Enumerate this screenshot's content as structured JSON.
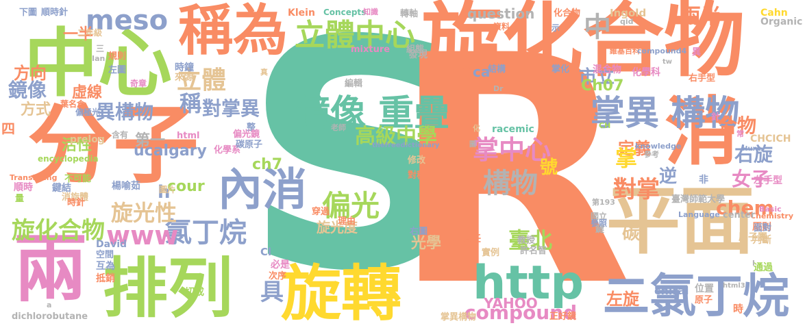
{
  "palette": {
    "orange": "#F98C64",
    "green": "#A6D75B",
    "teal": "#66C2A5",
    "tan": "#E5C494",
    "blue": "#8DA0CB",
    "pink": "#E78AC3",
    "yellow": "#FFD92F",
    "gray": "#B3B3B3"
  },
  "words": [
    {
      "text": "S"
    },
    {
      "text": "R"
    },
    {
      "text": "旋化合物"
    },
    {
      "text": "分子"
    },
    {
      "text": "中心"
    },
    {
      "text": "兩"
    },
    {
      "text": "排列"
    },
    {
      "text": "旋轉"
    },
    {
      "text": "平面"
    },
    {
      "text": "消"
    },
    {
      "text": "稱為"
    },
    {
      "text": "內消"
    },
    {
      "text": "二氯丁烷"
    },
    {
      "text": "http"
    },
    {
      "text": "鏡像 重疊"
    },
    {
      "text": "立體中心"
    },
    {
      "text": "掌異 構物"
    },
    {
      "text": "meso"
    },
    {
      "text": "氯丁烷"
    },
    {
      "text": "旋化合物"
    },
    {
      "text": "偏光"
    },
    {
      "text": "掌中心"
    },
    {
      "text": "構物"
    },
    {
      "text": "立體"
    },
    {
      "text": "高級中學"
    },
    {
      "text": "對掌異"
    },
    {
      "text": "稱"
    },
    {
      "text": "鏡像"
    },
    {
      "text": "異構物"
    },
    {
      "text": "旋光性"
    },
    {
      "text": "compound"
    },
    {
      "text": "www"
    },
    {
      "text": "臺北"
    },
    {
      "text": "合物"
    },
    {
      "text": "對掌"
    },
    {
      "text": "右旋"
    },
    {
      "text": "女子"
    },
    {
      "text": "chem"
    },
    {
      "text": "左旋"
    },
    {
      "text": "question"
    },
    {
      "text": "中"
    },
    {
      "text": "市立"
    },
    {
      "text": "兩半"
    },
    {
      "text": "方向"
    },
    {
      "text": "一半"
    },
    {
      "text": "虛線"
    },
    {
      "text": "方式"
    },
    {
      "text": "第一"
    },
    {
      "text": "ucalgary"
    },
    {
      "text": "活性"
    },
    {
      "text": "四"
    },
    {
      "text": "Ch07"
    },
    {
      "text": "ch7"
    },
    {
      "text": "cour"
    },
    {
      "text": "定義"
    },
    {
      "text": "掌"
    },
    {
      "text": "號"
    },
    {
      "text": "逆"
    },
    {
      "text": "具"
    },
    {
      "text": "h"
    },
    {
      "text": "ca"
    },
    {
      "text": "旋光度"
    },
    {
      "text": "光學"
    },
    {
      "text": "碳"
    },
    {
      "text": "YAHOO"
    },
    {
      "text": "chiral"
    },
    {
      "text": "CHCICH"
    },
    {
      "text": "Ingold"
    },
    {
      "text": "Cahn"
    },
    {
      "text": "Organic"
    },
    {
      "text": "Klein"
    },
    {
      "text": "Concepts"
    },
    {
      "text": "知識"
    },
    {
      "text": "轉軸"
    },
    {
      "text": "下圖"
    },
    {
      "text": "順時針"
    },
    {
      "text": "二年級"
    },
    {
      "text": "規則"
    },
    {
      "text": "左圖"
    },
    {
      "text": "時鐘"
    },
    {
      "text": "來源"
    },
    {
      "text": "奇章"
    },
    {
      "text": "葉名倉"
    },
    {
      "text": "偏極光"
    },
    {
      "text": "含有"
    },
    {
      "text": "prelog"
    },
    {
      "text": "html"
    },
    {
      "text": "化學系"
    },
    {
      "text": "整"
    },
    {
      "text": "偏光鏡"
    },
    {
      "text": "碳原子"
    },
    {
      "text": "encyclopedia"
    },
    {
      "text": "Translating"
    },
    {
      "text": "不可能"
    },
    {
      "text": "順時"
    },
    {
      "text": "鍵結"
    },
    {
      "text": "楊喻茹"
    },
    {
      "text": "圖片"
    },
    {
      "text": "消旋體"
    },
    {
      "text": "時針"
    },
    {
      "text": "量"
    },
    {
      "text": "David"
    },
    {
      "text": "空間"
    },
    {
      "text": "互為"
    },
    {
      "text": "抵銷"
    },
    {
      "text": "切成"
    },
    {
      "text": "dichlorobutane"
    },
    {
      "text": "Cl"
    },
    {
      "text": "必是"
    },
    {
      "text": "次序"
    },
    {
      "text": "實例"
    },
    {
      "text": "責任"
    },
    {
      "text": "教授"
    },
    {
      "text": "許名智"
    },
    {
      "text": "右圖"
    },
    {
      "text": "掌異構物"
    },
    {
      "text": "正好鏡"
    },
    {
      "text": "穿過"
    },
    {
      "text": "理由"
    },
    {
      "text": "對稱"
    },
    {
      "text": "修改"
    },
    {
      "text": "老師"
    },
    {
      "text": "thefreedictionary"
    },
    {
      "text": "racemic"
    },
    {
      "text": "化"
    },
    {
      "text": "圖"
    },
    {
      "text": "參考"
    },
    {
      "text": "knowledge"
    },
    {
      "text": "常"
    },
    {
      "text": "Hunt"
    },
    {
      "text": "左手型"
    },
    {
      "text": "非"
    },
    {
      "text": "鍵"
    },
    {
      "text": "第193"
    },
    {
      "text": "臺灣師範大學"
    },
    {
      "text": "Chemistry"
    },
    {
      "text": "國立"
    },
    {
      "text": "參照"
    },
    {
      "text": "Language"
    },
    {
      "text": "center"
    },
    {
      "text": "Basic"
    },
    {
      "text": "原則"
    },
    {
      "text": "判斷"
    },
    {
      "text": "面對"
    },
    {
      "text": "原子團"
    },
    {
      "text": "通過"
    },
    {
      "text": "位置"
    },
    {
      "text": "原子"
    },
    {
      "text": "html3"
    },
    {
      "text": "時"
    },
    {
      "text": "化合物"
    },
    {
      "text": "示"
    },
    {
      "text": "維基百科"
    },
    {
      "text": "compound4"
    },
    {
      "text": "資料"
    },
    {
      "text": "組態"
    },
    {
      "text": "mixture"
    },
    {
      "text": "發現"
    },
    {
      "text": "結構"
    },
    {
      "text": "qid"
    },
    {
      "text": "tw"
    },
    {
      "text": "掌化"
    },
    {
      "text": "混合物"
    },
    {
      "text": "化學科"
    },
    {
      "text": "右手型"
    },
    {
      "text": "異"
    },
    {
      "text": "Dr"
    },
    {
      "text": "編輯"
    },
    {
      "text": "針"
    },
    {
      "text": "CH"
    },
    {
      "text": "三"
    },
    {
      "text": "Ian"
    },
    {
      "text": "真"
    },
    {
      "text": "a"
    },
    {
      "text": "l"
    }
  ]
}
